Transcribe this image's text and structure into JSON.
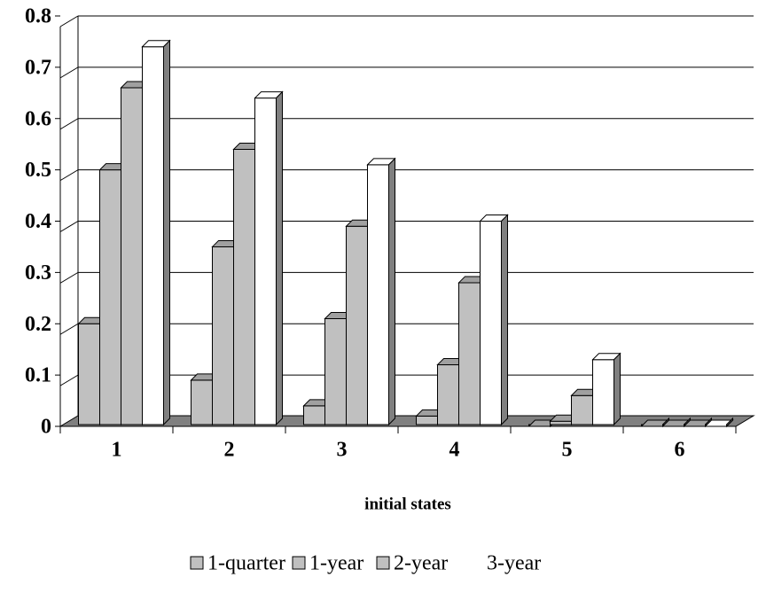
{
  "chart_data": {
    "type": "bar3d",
    "x_label": "initial states",
    "categories": [
      "1",
      "2",
      "3",
      "4",
      "5",
      "6"
    ],
    "series": [
      {
        "name": "1-quarter",
        "color": "#c0c0c0",
        "values": [
          0.2,
          0.09,
          0.04,
          0.02,
          0,
          0
        ]
      },
      {
        "name": "1-year",
        "color": "#c0c0c0",
        "values": [
          0.5,
          0.35,
          0.21,
          0.12,
          0.01,
          0
        ]
      },
      {
        "name": "2-year",
        "color": "#c0c0c0",
        "values": [
          0.66,
          0.54,
          0.39,
          0.28,
          0.06,
          0
        ]
      },
      {
        "name": "3-year",
        "color": "#ffffff",
        "values": [
          0.74,
          0.64,
          0.51,
          0.4,
          0.13,
          0
        ]
      }
    ],
    "ylim": [
      0,
      0.8
    ],
    "yticks": [
      0,
      0.1,
      0.2,
      0.3,
      0.4,
      0.5,
      0.6,
      0.7,
      0.8
    ],
    "grid": true
  }
}
